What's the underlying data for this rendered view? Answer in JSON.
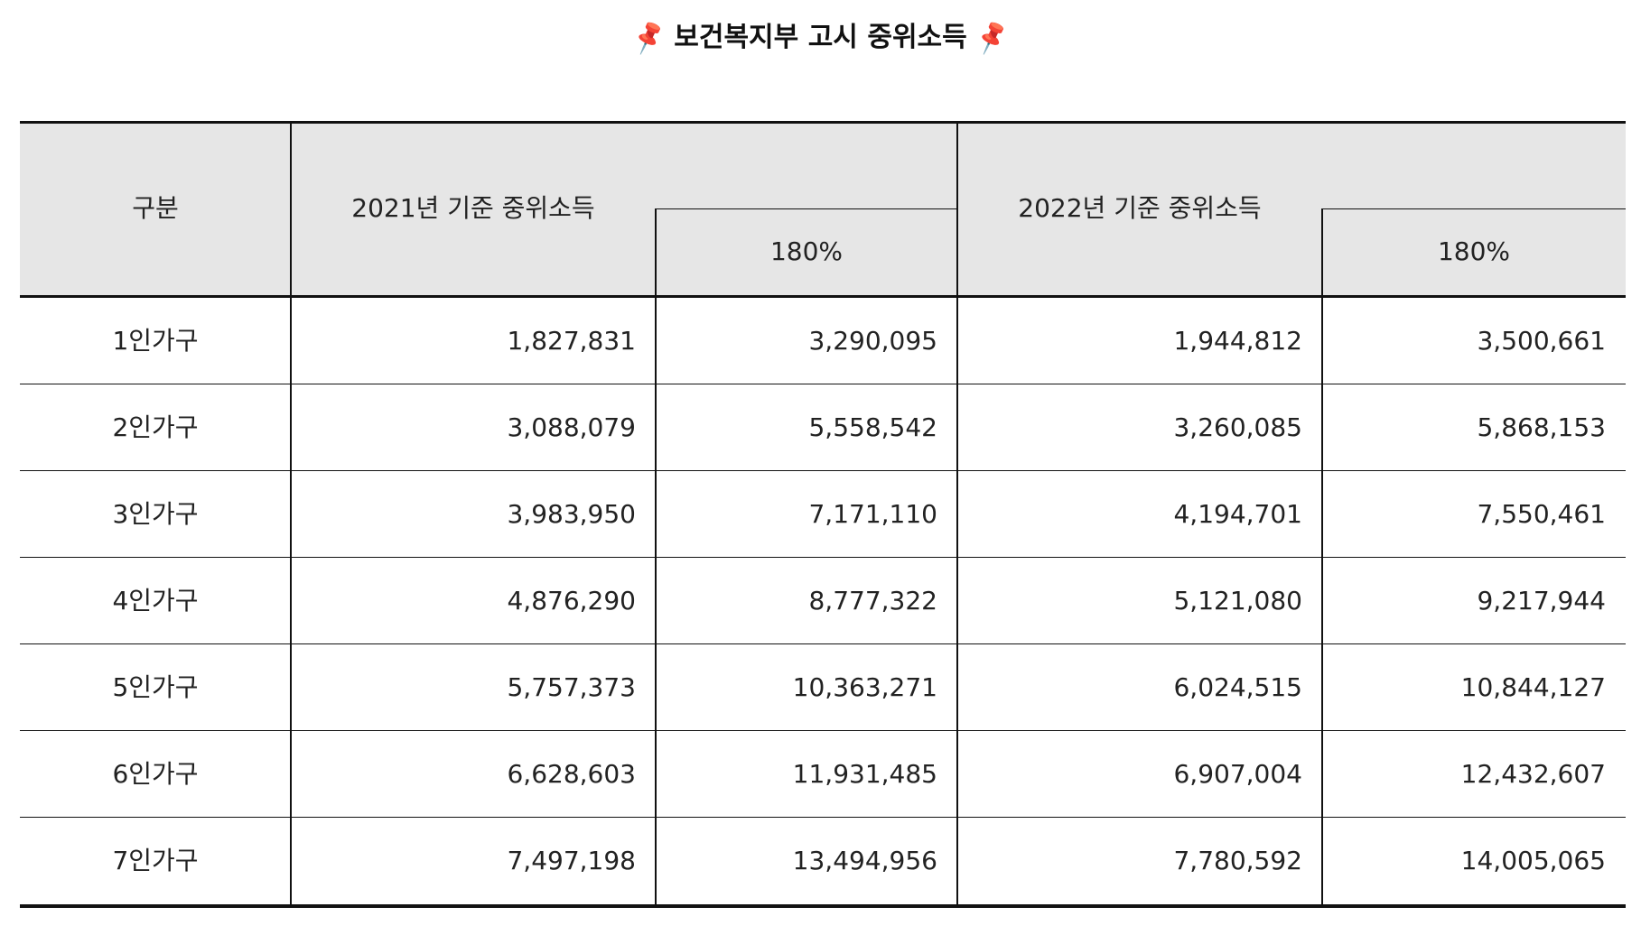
{
  "title": {
    "text": "보건복지부 고시 중위소득",
    "left_icon": "pushpin-icon",
    "right_icon": "pushpin-icon",
    "icon_glyph": "📌",
    "icon_color": "#d9262c"
  },
  "table": {
    "header": {
      "category": "구분",
      "year2021": "2021년 기준 중위소득",
      "year2021_sub": "180%",
      "year2022": "2022년 기준 중위소득",
      "year2022_sub": "180%"
    },
    "rows": [
      {
        "label": "1인가구",
        "v2021": "1,827,831",
        "v2021_180": "3,290,095",
        "v2022": "1,944,812",
        "v2022_180": "3,500,661"
      },
      {
        "label": "2인가구",
        "v2021": "3,088,079",
        "v2021_180": "5,558,542",
        "v2022": "3,260,085",
        "v2022_180": "5,868,153"
      },
      {
        "label": "3인가구",
        "v2021": "3,983,950",
        "v2021_180": "7,171,110",
        "v2022": "4,194,701",
        "v2022_180": "7,550,461"
      },
      {
        "label": "4인가구",
        "v2021": "4,876,290",
        "v2021_180": "8,777,322",
        "v2022": "5,121,080",
        "v2022_180": "9,217,944"
      },
      {
        "label": "5인가구",
        "v2021": "5,757,373",
        "v2021_180": "10,363,271",
        "v2022": "6,024,515",
        "v2022_180": "10,844,127"
      },
      {
        "label": "6인가구",
        "v2021": "6,628,603",
        "v2021_180": "11,931,485",
        "v2022": "6,907,004",
        "v2022_180": "12,432,607"
      },
      {
        "label": "7인가구",
        "v2021": "7,497,198",
        "v2021_180": "13,494,956",
        "v2022": "7,780,592",
        "v2022_180": "14,005,065"
      }
    ],
    "colors": {
      "header_background": "#e6e6e6",
      "border": "#111111"
    }
  }
}
